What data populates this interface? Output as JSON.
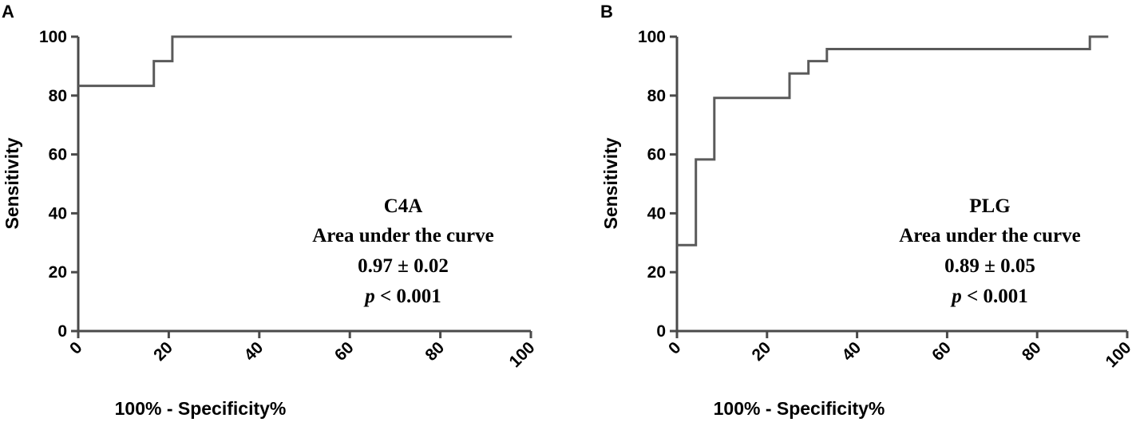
{
  "chart_data": [
    {
      "type": "line",
      "panel_label": "A",
      "xlabel": "100% - Specificity%",
      "ylabel": "Sensitivity",
      "xlim": [
        0,
        100
      ],
      "ylim": [
        0,
        100
      ],
      "xticks": [
        "0",
        "20",
        "40",
        "60",
        "80",
        "100"
      ],
      "yticks": [
        "0",
        "20",
        "40",
        "60",
        "80",
        "100"
      ],
      "step_curve": true,
      "points": [
        [
          0,
          83.3
        ],
        [
          16.7,
          83.3
        ],
        [
          16.7,
          91.7
        ],
        [
          20.8,
          91.7
        ],
        [
          20.8,
          100
        ],
        [
          95.8,
          100
        ]
      ],
      "annotation": {
        "name": "C4A",
        "auc_label": "Area under the curve",
        "auc_value": "0.97 ± 0.02",
        "p_symbol": "p",
        "p_text": " < 0.001"
      }
    },
    {
      "type": "line",
      "panel_label": "B",
      "xlabel": "100% - Specificity%",
      "ylabel": "Sensitivity",
      "xlim": [
        0,
        100
      ],
      "ylim": [
        0,
        100
      ],
      "xticks": [
        "0",
        "20",
        "40",
        "60",
        "80",
        "100"
      ],
      "yticks": [
        "0",
        "20",
        "40",
        "60",
        "80",
        "100"
      ],
      "step_curve": true,
      "points": [
        [
          0,
          29.2
        ],
        [
          4.2,
          29.2
        ],
        [
          4.2,
          58.3
        ],
        [
          8.3,
          58.3
        ],
        [
          8.3,
          79.2
        ],
        [
          25,
          79.2
        ],
        [
          25,
          87.5
        ],
        [
          29.2,
          87.5
        ],
        [
          29.2,
          91.7
        ],
        [
          33.3,
          91.7
        ],
        [
          33.3,
          95.8
        ],
        [
          91.7,
          95.8
        ],
        [
          91.7,
          100
        ],
        [
          95.8,
          100
        ]
      ],
      "annotation": {
        "name": "PLG",
        "auc_label": "Area under the curve",
        "auc_value": "0.89 ± 0.05",
        "p_symbol": "p",
        "p_text": " < 0.001"
      }
    }
  ],
  "colors": {
    "curve": "#5a5a5a",
    "axis": "#4a4a4a",
    "text": "#000000"
  }
}
